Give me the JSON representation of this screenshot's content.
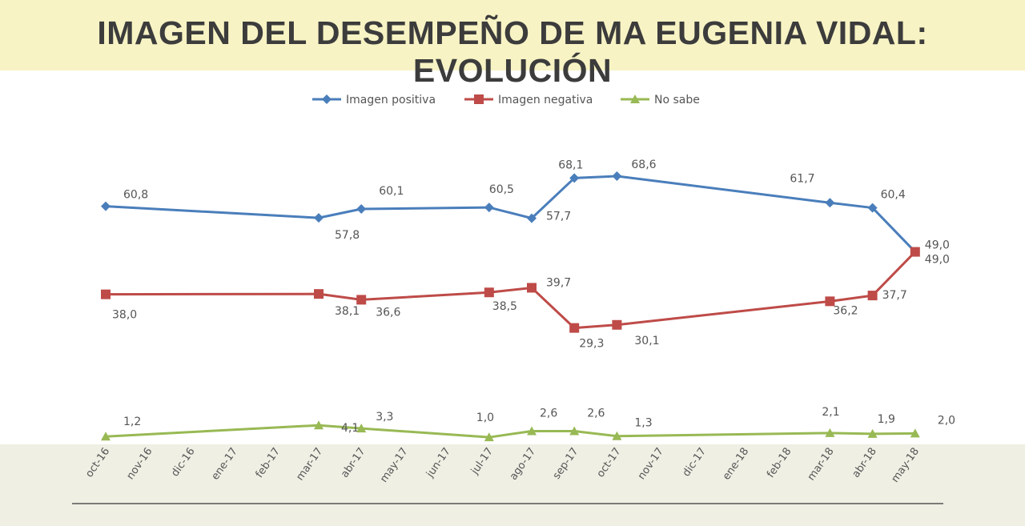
{
  "title": "IMAGEN DEL DESEMPEÑO DE MA EUGENIA VIDAL: EVOLUCIÓN",
  "chart_data": {
    "type": "line",
    "title": "IMAGEN DEL DESEMPEÑO DE MA EUGENIA VIDAL: EVOLUCIÓN",
    "xlabel": "",
    "ylabel": "",
    "categories": [
      "oct-16",
      "nov-16",
      "dic-16",
      "ene-17",
      "feb-17",
      "mar-17",
      "abr-17",
      "may-17",
      "jun-17",
      "jul-17",
      "ago-17",
      "sep-17",
      "oct-17",
      "nov-17",
      "dic-17",
      "ene-18",
      "feb-18",
      "mar-18",
      "abr-18",
      "may-18"
    ],
    "ylim": [
      0,
      75
    ],
    "grid": false,
    "legend_position": "top",
    "series": [
      {
        "name": "Imagen positiva",
        "color": "#4a7ebb",
        "marker": "diamond",
        "points": [
          {
            "x": "oct-16",
            "y": 60.8,
            "label": "60,8"
          },
          {
            "x": "mar-17",
            "y": 57.8,
            "label": "57,8"
          },
          {
            "x": "abr-17",
            "y": 60.1,
            "label": "60,1"
          },
          {
            "x": "jul-17",
            "y": 60.5,
            "label": "60,5"
          },
          {
            "x": "ago-17",
            "y": 57.7,
            "label": "57,7"
          },
          {
            "x": "sep-17",
            "y": 68.1,
            "label": "68,1"
          },
          {
            "x": "oct-17",
            "y": 68.6,
            "label": "68,6"
          },
          {
            "x": "mar-18",
            "y": 61.7,
            "label": "61,7"
          },
          {
            "x": "abr-18",
            "y": 60.4,
            "label": "60,4"
          },
          {
            "x": "may-18",
            "y": 49.0,
            "label": "49,0"
          }
        ]
      },
      {
        "name": "Imagen negativa",
        "color": "#be4b48",
        "marker": "square",
        "points": [
          {
            "x": "oct-16",
            "y": 38.0,
            "label": "38,0"
          },
          {
            "x": "mar-17",
            "y": 38.1,
            "label": "38,1"
          },
          {
            "x": "abr-17",
            "y": 36.6,
            "label": "36,6"
          },
          {
            "x": "jul-17",
            "y": 38.5,
            "label": "38,5"
          },
          {
            "x": "ago-17",
            "y": 39.7,
            "label": "39,7"
          },
          {
            "x": "sep-17",
            "y": 29.3,
            "label": "29,3"
          },
          {
            "x": "oct-17",
            "y": 30.1,
            "label": "30,1"
          },
          {
            "x": "mar-18",
            "y": 36.2,
            "label": "36,2"
          },
          {
            "x": "abr-18",
            "y": 37.7,
            "label": "37,7"
          },
          {
            "x": "may-18",
            "y": 49.0,
            "label": "49,0"
          }
        ]
      },
      {
        "name": "No sabe",
        "color": "#98b954",
        "marker": "triangle",
        "points": [
          {
            "x": "oct-16",
            "y": 1.2,
            "label": "1,2"
          },
          {
            "x": "mar-17",
            "y": 4.1,
            "label": "4,1"
          },
          {
            "x": "abr-17",
            "y": 3.3,
            "label": "3,3"
          },
          {
            "x": "jul-17",
            "y": 1.0,
            "label": "1,0"
          },
          {
            "x": "ago-17",
            "y": 2.6,
            "label": "2,6"
          },
          {
            "x": "sep-17",
            "y": 2.6,
            "label": "2,6"
          },
          {
            "x": "oct-17",
            "y": 1.3,
            "label": "1,3"
          },
          {
            "x": "mar-18",
            "y": 2.1,
            "label": "2,1"
          },
          {
            "x": "abr-18",
            "y": 1.9,
            "label": "1,9"
          },
          {
            "x": "may-18",
            "y": 2.0,
            "label": "2,0"
          }
        ]
      }
    ]
  }
}
